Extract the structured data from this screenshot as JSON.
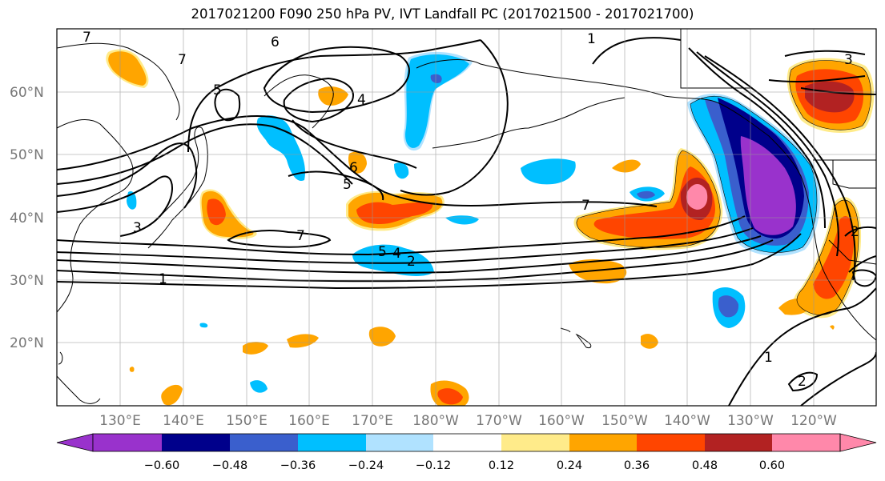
{
  "title": "2017021200 F090 250 hPa PV, IVT Landfall PC (2017021500 - 2017021700)",
  "map": {
    "lat_ticks": [
      "20°N",
      "30°N",
      "40°N",
      "50°N",
      "60°N"
    ],
    "lon_ticks": [
      "130°E",
      "140°E",
      "150°E",
      "160°E",
      "170°E",
      "180°W",
      "170°W",
      "160°W",
      "150°W",
      "140°W",
      "130°W",
      "120°W"
    ],
    "lon_range": [
      120,
      250
    ],
    "lat_range": [
      10,
      70
    ],
    "grid": true
  },
  "colorbar": {
    "boundaries": [
      -0.6,
      -0.48,
      -0.36,
      -0.24,
      -0.12,
      0.12,
      0.24,
      0.36,
      0.48,
      0.6
    ],
    "labels": [
      "−0.60",
      "−0.48",
      "−0.36",
      "−0.24",
      "−0.12",
      "0.12",
      "0.24",
      "0.36",
      "0.48",
      "0.60"
    ],
    "colors": [
      "#9932cc",
      "#00008b",
      "#3a5fcd",
      "#00bfff",
      "#b0e2ff",
      "#ffffff",
      "#ffeb8a",
      "#ffa500",
      "#ff4500",
      "#b22222",
      "#ff88aa"
    ],
    "extend": "both"
  },
  "pv_contour_labels": [
    "7",
    "6",
    "7",
    "5",
    "4",
    "6",
    "5",
    "3",
    "7",
    "5",
    "4",
    "2",
    "7",
    "1",
    "3",
    "1",
    "2",
    "1",
    "2"
  ]
}
